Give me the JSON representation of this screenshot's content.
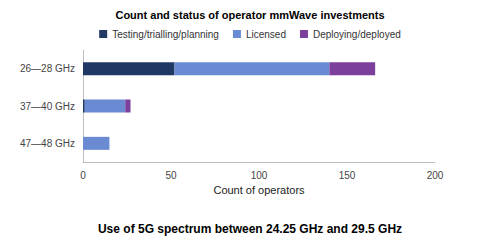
{
  "chart_data": {
    "type": "bar",
    "title": "Count and status of operator mmWave investments",
    "subtitle": "Use of 5G spectrum between 24.25 GHz and 29.5 GHz",
    "x_label": "Count of operators",
    "categories": [
      "26—28 GHz",
      "37—40 GHz",
      "47—48 GHz"
    ],
    "series": [
      {
        "name": "Testing/trialling/planning",
        "color": "#1f3864",
        "values": [
          52,
          1,
          0
        ]
      },
      {
        "name": "Licensed",
        "color": "#6a8ad4",
        "values": [
          88,
          23,
          15
        ]
      },
      {
        "name": "Deploying/deployed",
        "color": "#7c3f9c",
        "values": [
          26,
          3,
          0
        ]
      }
    ],
    "xlim": [
      0,
      200
    ],
    "xticks": [
      0,
      50,
      100,
      150,
      200
    ],
    "orientation": "horizontal",
    "stacked": true,
    "legend": "top",
    "grid": false
  }
}
